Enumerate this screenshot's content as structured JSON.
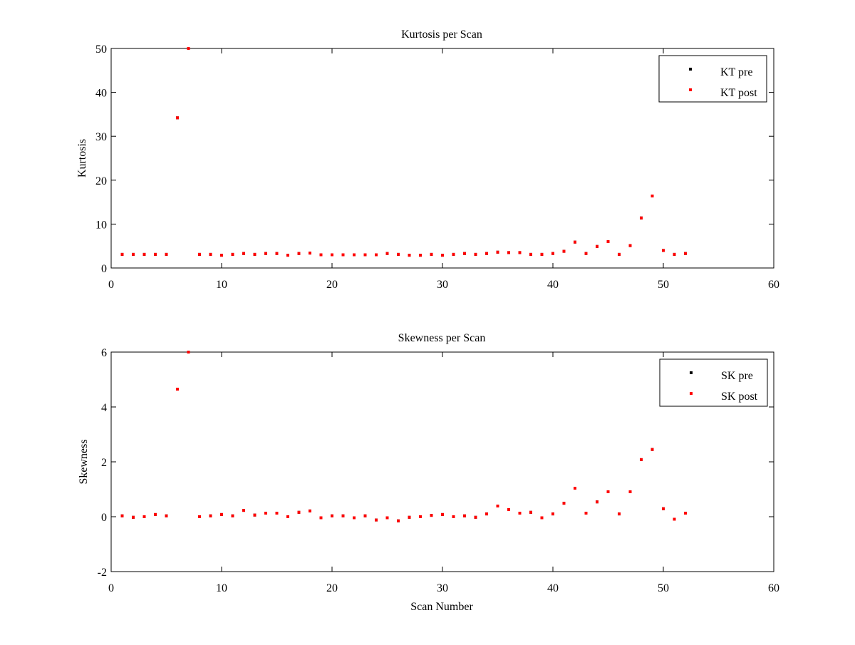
{
  "colors": {
    "background": "#ffffff",
    "axes": "#000000",
    "pre_marker": "#000000",
    "post_marker": "#ff0000"
  },
  "chart_data": [
    {
      "type": "scatter",
      "title": "Kurtosis per Scan",
      "xlabel": "",
      "ylabel": "Kurtosis",
      "xlim": [
        0,
        60
      ],
      "ylim": [
        0,
        50
      ],
      "xticks": [
        "0",
        "10",
        "20",
        "30",
        "40",
        "50",
        "60"
      ],
      "yticks": [
        "0",
        "10",
        "20",
        "30",
        "40",
        "50"
      ],
      "grid": false,
      "legend_position": "top-right",
      "legend": [
        "KT pre",
        "KT post"
      ],
      "series": [
        {
          "name": "KT pre",
          "marker": "point",
          "color": "#000000",
          "x": [
            1,
            2,
            3,
            4,
            5,
            6,
            7,
            8,
            9,
            10,
            11,
            12,
            13,
            14,
            15,
            16,
            17,
            18,
            19,
            20,
            21,
            22,
            23,
            24,
            25,
            26,
            27,
            28,
            29,
            30,
            31,
            32,
            33,
            34,
            35,
            36,
            37,
            38,
            39,
            40,
            41,
            42,
            43,
            44,
            45,
            46,
            47,
            48,
            49,
            50,
            51,
            52
          ],
          "y": [
            3.1,
            3.1,
            3.1,
            3.1,
            3.1,
            34.2,
            50.0,
            3.1,
            3.1,
            2.9,
            3.1,
            3.3,
            3.1,
            3.3,
            3.3,
            2.9,
            3.3,
            3.4,
            3.0,
            3.0,
            3.0,
            3.0,
            3.0,
            3.0,
            3.3,
            3.1,
            2.9,
            2.9,
            3.1,
            2.9,
            3.1,
            3.3,
            3.1,
            3.3,
            3.6,
            3.5,
            3.5,
            3.1,
            3.1,
            3.3,
            3.8,
            5.9,
            3.3,
            4.9,
            6.0,
            3.1,
            5.1,
            11.4,
            16.4,
            4.0,
            3.1,
            3.3
          ]
        },
        {
          "name": "KT post",
          "marker": "point",
          "color": "#ff0000",
          "x": [
            1,
            2,
            3,
            4,
            5,
            6,
            7,
            8,
            9,
            10,
            11,
            12,
            13,
            14,
            15,
            16,
            17,
            18,
            19,
            20,
            21,
            22,
            23,
            24,
            25,
            26,
            27,
            28,
            29,
            30,
            31,
            32,
            33,
            34,
            35,
            36,
            37,
            38,
            39,
            40,
            41,
            42,
            43,
            44,
            45,
            46,
            47,
            48,
            49,
            50,
            51,
            52
          ],
          "y": [
            3.1,
            3.1,
            3.1,
            3.1,
            3.1,
            34.2,
            50.0,
            3.1,
            3.1,
            2.9,
            3.1,
            3.3,
            3.1,
            3.3,
            3.3,
            2.9,
            3.3,
            3.4,
            3.0,
            3.0,
            3.0,
            3.0,
            3.0,
            3.0,
            3.3,
            3.1,
            2.9,
            2.9,
            3.1,
            2.9,
            3.1,
            3.3,
            3.1,
            3.3,
            3.6,
            3.5,
            3.5,
            3.1,
            3.1,
            3.3,
            3.8,
            5.9,
            3.3,
            4.9,
            6.0,
            3.1,
            5.1,
            11.4,
            16.4,
            4.0,
            3.1,
            3.3
          ]
        }
      ]
    },
    {
      "type": "scatter",
      "title": "Skewness per Scan",
      "xlabel": "Scan Number",
      "ylabel": "Skewness",
      "xlim": [
        0,
        60
      ],
      "ylim": [
        -2,
        6
      ],
      "xticks": [
        "0",
        "10",
        "20",
        "30",
        "40",
        "50",
        "60"
      ],
      "yticks": [
        "-2",
        "0",
        "2",
        "4",
        "6"
      ],
      "grid": false,
      "legend_position": "top-right",
      "legend": [
        "SK pre",
        "SK post"
      ],
      "series": [
        {
          "name": "SK pre",
          "marker": "point",
          "color": "#000000",
          "x": [
            1,
            2,
            3,
            4,
            5,
            6,
            7,
            8,
            9,
            10,
            11,
            12,
            13,
            14,
            15,
            16,
            17,
            18,
            19,
            20,
            21,
            22,
            23,
            24,
            25,
            26,
            27,
            28,
            29,
            30,
            31,
            32,
            33,
            34,
            35,
            36,
            37,
            38,
            39,
            40,
            41,
            42,
            43,
            44,
            45,
            46,
            47,
            48,
            49,
            50,
            51,
            52
          ],
          "y": [
            0.03,
            -0.02,
            0.0,
            0.08,
            0.03,
            4.65,
            6.0,
            0.0,
            0.03,
            0.08,
            0.03,
            0.23,
            0.06,
            0.13,
            0.13,
            0.0,
            0.16,
            0.21,
            -0.04,
            0.03,
            0.03,
            -0.04,
            0.03,
            -0.12,
            -0.04,
            -0.15,
            -0.02,
            0.0,
            0.05,
            0.08,
            0.0,
            0.03,
            -0.02,
            0.1,
            0.39,
            0.26,
            0.13,
            0.16,
            -0.04,
            0.1,
            0.49,
            1.04,
            0.13,
            0.54,
            0.91,
            0.1,
            0.91,
            2.08,
            2.45,
            0.29,
            -0.09,
            0.13
          ]
        },
        {
          "name": "SK post",
          "marker": "point",
          "color": "#ff0000",
          "x": [
            1,
            2,
            3,
            4,
            5,
            6,
            7,
            8,
            9,
            10,
            11,
            12,
            13,
            14,
            15,
            16,
            17,
            18,
            19,
            20,
            21,
            22,
            23,
            24,
            25,
            26,
            27,
            28,
            29,
            30,
            31,
            32,
            33,
            34,
            35,
            36,
            37,
            38,
            39,
            40,
            41,
            42,
            43,
            44,
            45,
            46,
            47,
            48,
            49,
            50,
            51,
            52
          ],
          "y": [
            0.03,
            -0.02,
            0.0,
            0.08,
            0.03,
            4.65,
            6.0,
            0.0,
            0.03,
            0.08,
            0.03,
            0.23,
            0.06,
            0.13,
            0.13,
            0.0,
            0.16,
            0.21,
            -0.04,
            0.03,
            0.03,
            -0.04,
            0.03,
            -0.12,
            -0.04,
            -0.15,
            -0.02,
            0.0,
            0.05,
            0.08,
            0.0,
            0.03,
            -0.02,
            0.1,
            0.39,
            0.26,
            0.13,
            0.16,
            -0.04,
            0.1,
            0.49,
            1.04,
            0.13,
            0.54,
            0.91,
            0.1,
            0.91,
            2.08,
            2.45,
            0.29,
            -0.09,
            0.13
          ]
        }
      ]
    }
  ]
}
